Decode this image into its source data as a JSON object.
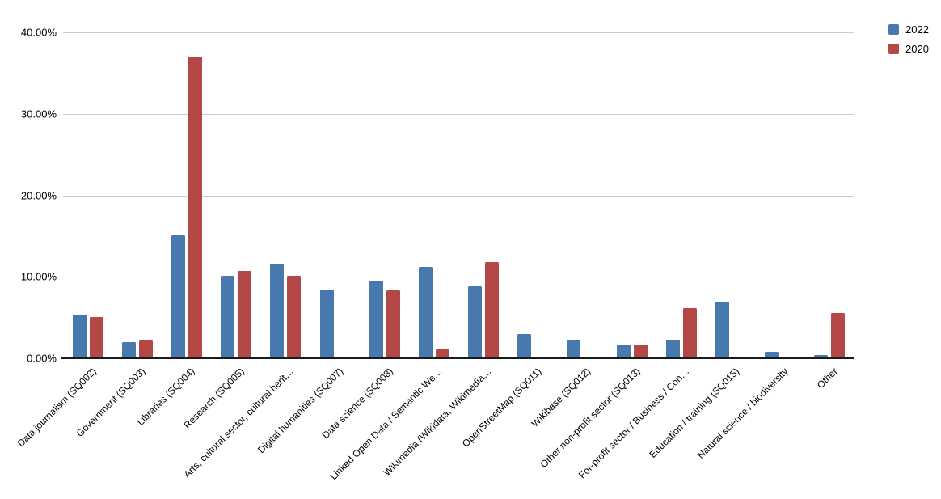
{
  "chart_data": {
    "type": "bar",
    "title": "",
    "xlabel": "",
    "ylabel": "",
    "categories": [
      "Data journalism (SQ002)",
      "Government (SQ003)",
      "Libraries (SQ004)",
      "Research (SQ005)",
      "Arts, cultural sector, cultural herit…",
      "Digital humanities (SQ007)",
      "Data science (SQ008)",
      "Linked Open Data / Semantic We…",
      "Wikimedia (Wikidata, Wikimedia…",
      "OpenStreetMap (SQ011)",
      "Wikibase (SQ012)",
      "Other non-profit sector (SQ013)",
      "For-profit sector / Business / Con…",
      "Education / training (SQ015)",
      "Natural science / biodiversity",
      "Other"
    ],
    "series": [
      {
        "name": "2022",
        "color": "#4879AE",
        "values": [
          5.4,
          2.0,
          15.1,
          10.1,
          11.6,
          8.4,
          9.5,
          11.2,
          8.8,
          3.0,
          2.3,
          1.7,
          2.3,
          6.9,
          0.8,
          0.4
        ]
      },
      {
        "name": "2020",
        "color": "#B44846",
        "values": [
          5.1,
          2.2,
          37.0,
          10.7,
          10.1,
          0,
          8.3,
          1.1,
          11.8,
          0,
          0,
          1.7,
          6.2,
          0,
          0,
          5.6
        ]
      }
    ],
    "ylim": [
      0,
      40
    ],
    "y_ticks": [
      {
        "value": 0,
        "label": "0.00%"
      },
      {
        "value": 10,
        "label": "10.00%"
      },
      {
        "value": 20,
        "label": "20.00%"
      },
      {
        "value": 30,
        "label": "30.00%"
      },
      {
        "value": 40,
        "label": "40.00%"
      }
    ],
    "grid": true,
    "legend_position": "top-right",
    "colors": {
      "grid": "#CCCCCC",
      "axis": "#1A1A1A",
      "text": "#000000",
      "background": "#FFFFFF"
    }
  }
}
